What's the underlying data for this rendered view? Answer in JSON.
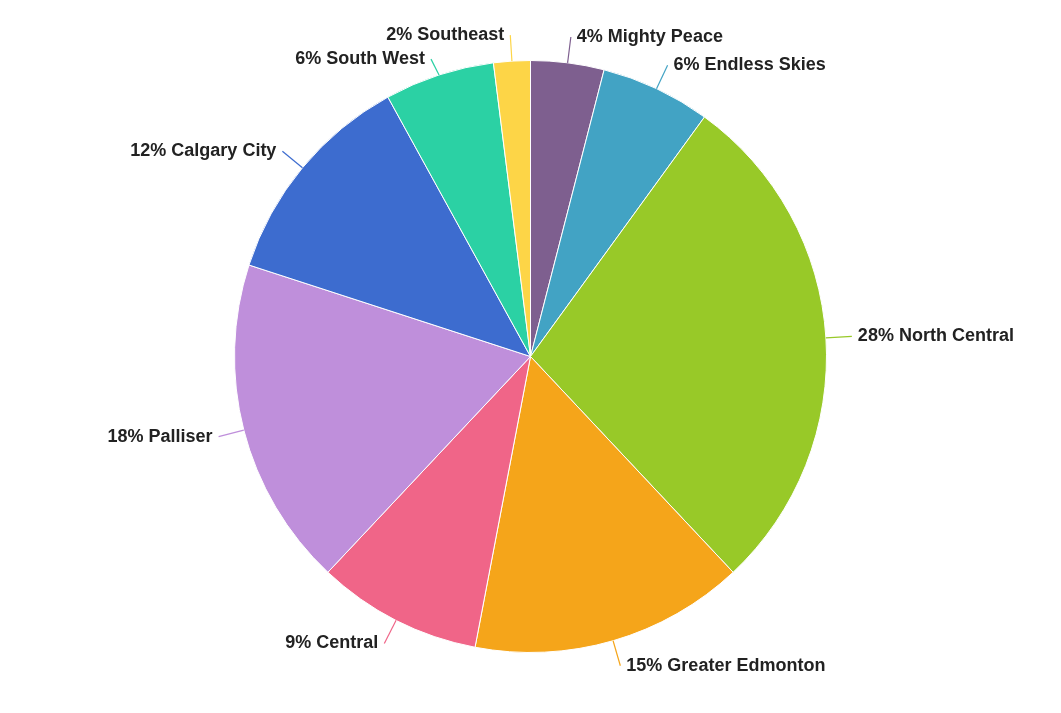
{
  "chart_data": {
    "type": "pie",
    "categories": [
      "Mighty Peace",
      "Endless Skies",
      "North Central",
      "Greater Edmonton",
      "Central",
      "Palliser",
      "Calgary City",
      "South West",
      "Southeast"
    ],
    "values": [
      4,
      6,
      28,
      15,
      9,
      18,
      12,
      6,
      2
    ],
    "value_labels": [
      "4%",
      "6%",
      "28%",
      "15%",
      "9%",
      "18%",
      "12%",
      "6%",
      "2%"
    ],
    "colors": [
      "#7e5f8f",
      "#42a3c4",
      "#98c928",
      "#f5a51a",
      "#f06588",
      "#bf8fdb",
      "#3d6ccf",
      "#2bd1a4",
      "#fdd547"
    ]
  }
}
